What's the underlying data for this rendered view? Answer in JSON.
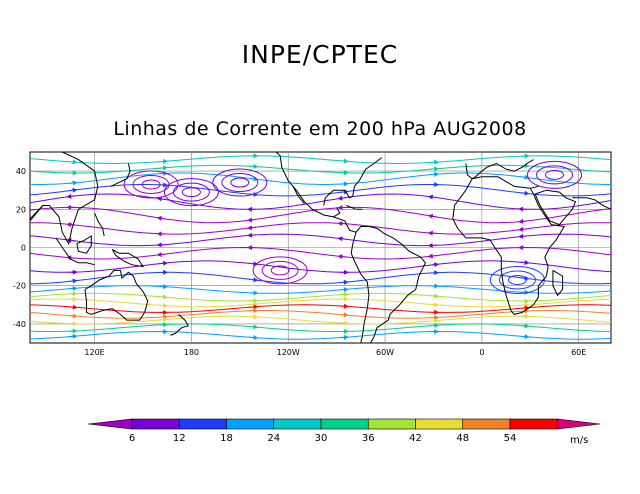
{
  "header": {
    "title": "INPE/CPTEC",
    "subtitle": "Linhas de Corrente em 200 hPa AUG2008"
  },
  "map": {
    "projection": "equirectangular",
    "lon_range": [
      80,
      440
    ],
    "lat_range": [
      -50,
      50
    ],
    "lat_ticks": [
      {
        "value": 40,
        "label": "40"
      },
      {
        "value": 20,
        "label": "20"
      },
      {
        "value": 0,
        "label": "0"
      },
      {
        "value": -20,
        "label": "-20"
      },
      {
        "value": -40,
        "label": "-40"
      }
    ],
    "lon_ticks": [
      {
        "value": 120,
        "label": "120E"
      },
      {
        "value": 180,
        "label": "180"
      },
      {
        "value": 240,
        "label": "120W"
      },
      {
        "value": 300,
        "label": "60W"
      },
      {
        "value": 360,
        "label": "0"
      },
      {
        "value": 420,
        "label": "60E"
      }
    ],
    "grid": true,
    "coastline_color": "#000000",
    "field": "streamlines colored by wind speed"
  },
  "colorbar": {
    "unit": "m/s",
    "labels": [
      "6",
      "12",
      "18",
      "24",
      "30",
      "36",
      "42",
      "48",
      "54"
    ],
    "colors": [
      "#a000c8",
      "#7800dc",
      "#1e3cff",
      "#00a0ff",
      "#00c8c8",
      "#00d28c",
      "#a0e632",
      "#e6dc32",
      "#f08228",
      "#fa0000",
      "#dc0078"
    ]
  }
}
